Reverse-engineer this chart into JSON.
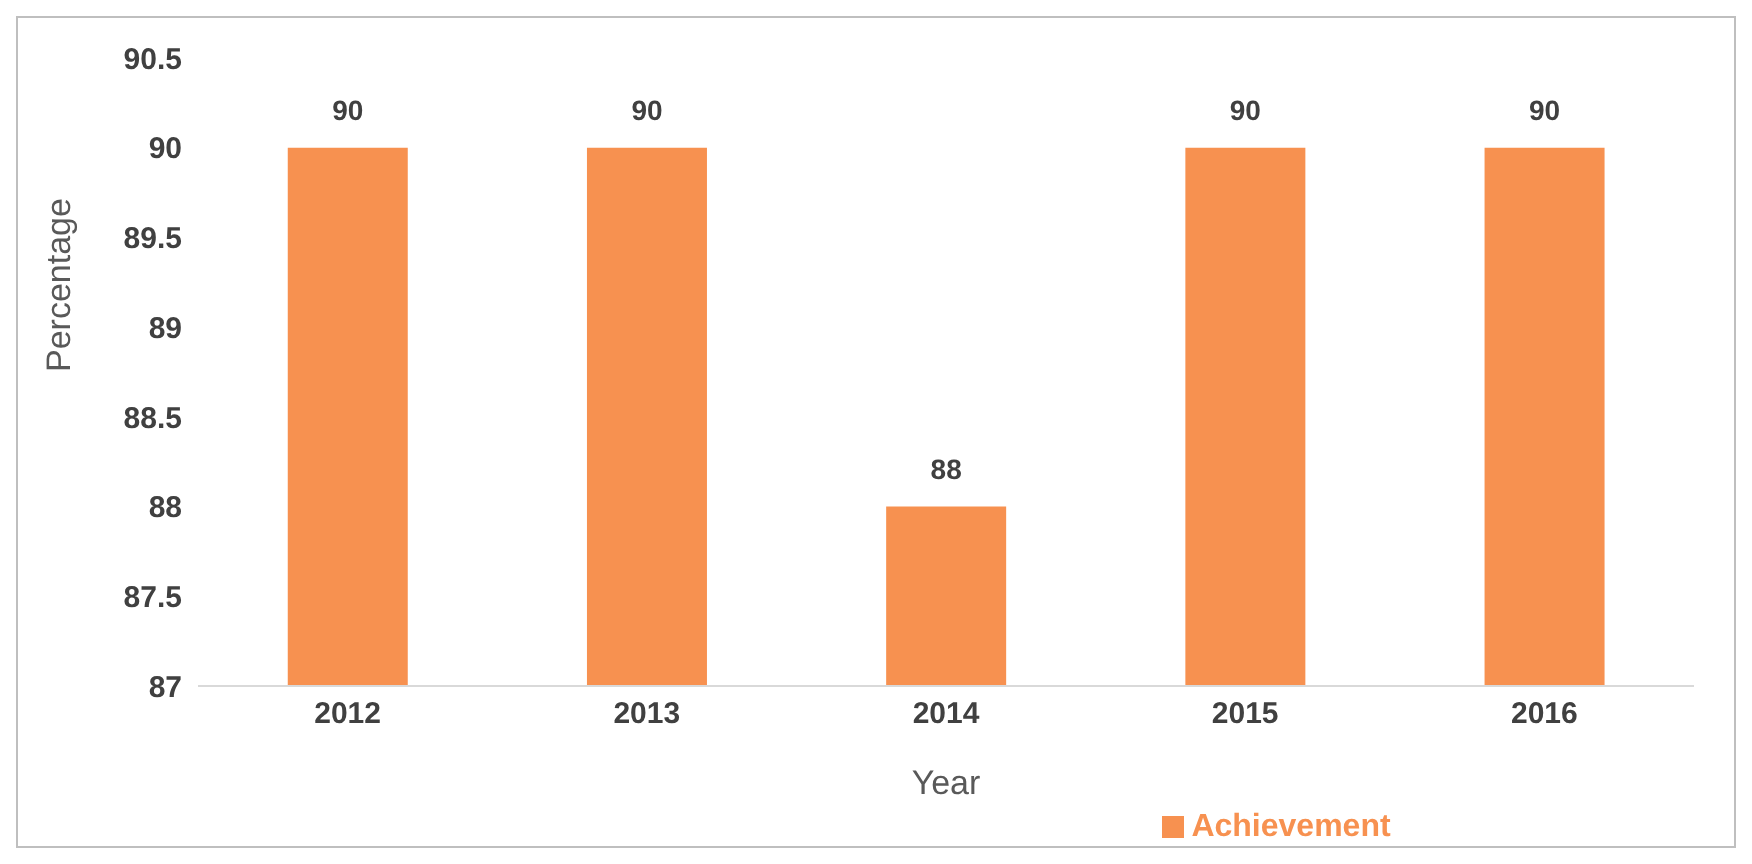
{
  "chart_data": {
    "type": "bar",
    "xlabel": "Year",
    "ylabel": "Percentage",
    "categories": [
      "2012",
      "2013",
      "2014",
      "2015",
      "2016"
    ],
    "series": [
      {
        "name": "Achievement",
        "color": "#f79150",
        "values": [
          90,
          90,
          88,
          90,
          90
        ]
      }
    ],
    "ylim": [
      87,
      90.5
    ],
    "yticks": [
      87,
      87.5,
      88,
      88.5,
      89,
      89.5,
      90,
      90.5
    ],
    "data_labels": true,
    "legend": "bottom",
    "grid": false
  }
}
